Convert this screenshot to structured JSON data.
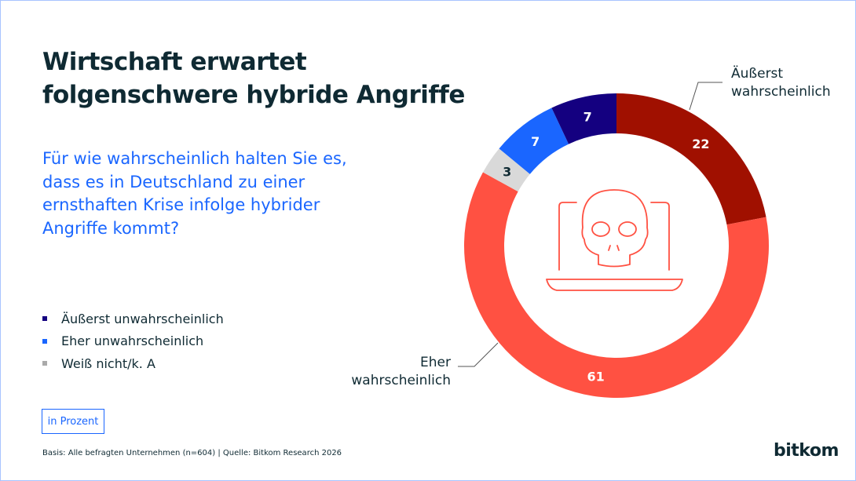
{
  "title_lines": [
    "Wirtschaft erwartet",
    "folgenschwere hybride Angriffe"
  ],
  "question": "Für wie wahrscheinlich halten Sie es, dass es in Deutschland zu einer ernsthaften Krise infolge hybrider Angriffe kommt?",
  "unit_label": "in Prozent",
  "source": "Basis: Alle befragten Unternehmen (n=604) | Quelle: Bitkom Research 2026",
  "logo": "bitkom",
  "center_icon": "laptop-skull-icon",
  "chart_data": {
    "type": "pie",
    "donut": true,
    "unit": "Prozent",
    "slices": [
      {
        "label": "Äußerst wahrscheinlich",
        "value": 22,
        "color": "#A01000"
      },
      {
        "label": "Eher wahrscheinlich",
        "value": 61,
        "color": "#FF5142"
      },
      {
        "label": "Weiß nicht/k. A",
        "value": 3,
        "color": "#D9D9D9"
      },
      {
        "label": "Eher unwahrscheinlich",
        "value": 7,
        "color": "#1A66FF"
      },
      {
        "label": "Äußerst unwahrscheinlich",
        "value": 7,
        "color": "#140080"
      }
    ],
    "callouts": {
      "top_right": [
        "Äußerst",
        "wahrscheinlich"
      ],
      "bottom_left": [
        "Eher",
        "wahrscheinlich"
      ]
    },
    "legend": [
      {
        "label": "Äußerst unwahrscheinlich",
        "color": "#140080"
      },
      {
        "label": "Eher unwahrscheinlich",
        "color": "#1A66FF"
      },
      {
        "label": "Weiß nicht/k. A",
        "color": "#AAAAAA"
      }
    ]
  }
}
